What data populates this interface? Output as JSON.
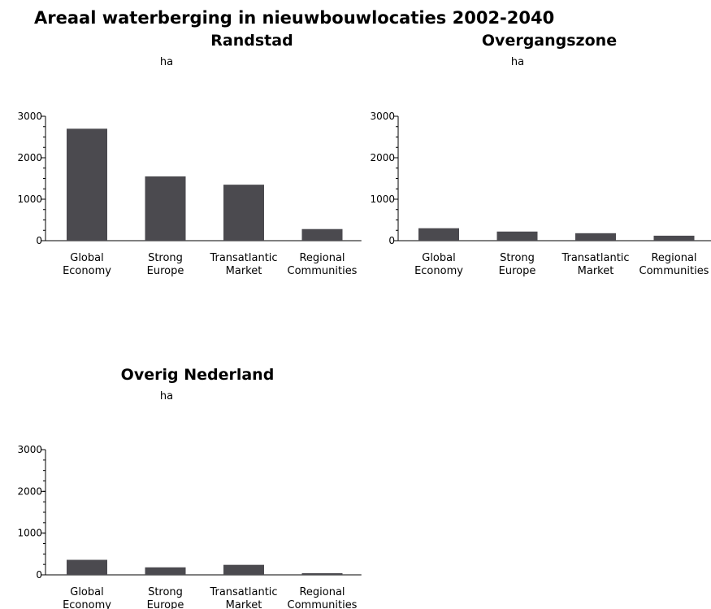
{
  "main_title": "Areaal waterberging in nieuwbouwlocaties 2002-2040",
  "colors": {
    "bar": "#4b4a4f",
    "axis": "#000000"
  },
  "chart_data": [
    {
      "type": "bar",
      "title": "Randstad",
      "unit": "ha",
      "categories": [
        [
          "Global",
          "Economy"
        ],
        [
          "Strong",
          "Europe"
        ],
        [
          "Transatlantic",
          "Market"
        ],
        [
          "Regional",
          "Communities"
        ]
      ],
      "values": [
        2700,
        1550,
        1350,
        280
      ],
      "ylim": [
        0,
        3000
      ],
      "yticks": [
        0,
        1000,
        2000,
        3000
      ],
      "grid": false
    },
    {
      "type": "bar",
      "title": "Overgangszone",
      "unit": "ha",
      "categories": [
        [
          "Global",
          "Economy"
        ],
        [
          "Strong",
          "Europe"
        ],
        [
          "Transatlantic",
          "Market"
        ],
        [
          "Regional",
          "Communities"
        ]
      ],
      "values": [
        300,
        220,
        180,
        120
      ],
      "ylim": [
        0,
        3000
      ],
      "yticks": [
        0,
        1000,
        2000,
        3000
      ],
      "grid": false
    },
    {
      "type": "bar",
      "title": "Overig Nederland",
      "unit": "ha",
      "categories": [
        [
          "Global",
          "Economy"
        ],
        [
          "Strong",
          "Europe"
        ],
        [
          "Transatlantic",
          "Market"
        ],
        [
          "Regional",
          "Communities"
        ]
      ],
      "values": [
        360,
        180,
        240,
        40
      ],
      "ylim": [
        0,
        3000
      ],
      "yticks": [
        0,
        1000,
        2000,
        3000
      ],
      "grid": false
    }
  ]
}
